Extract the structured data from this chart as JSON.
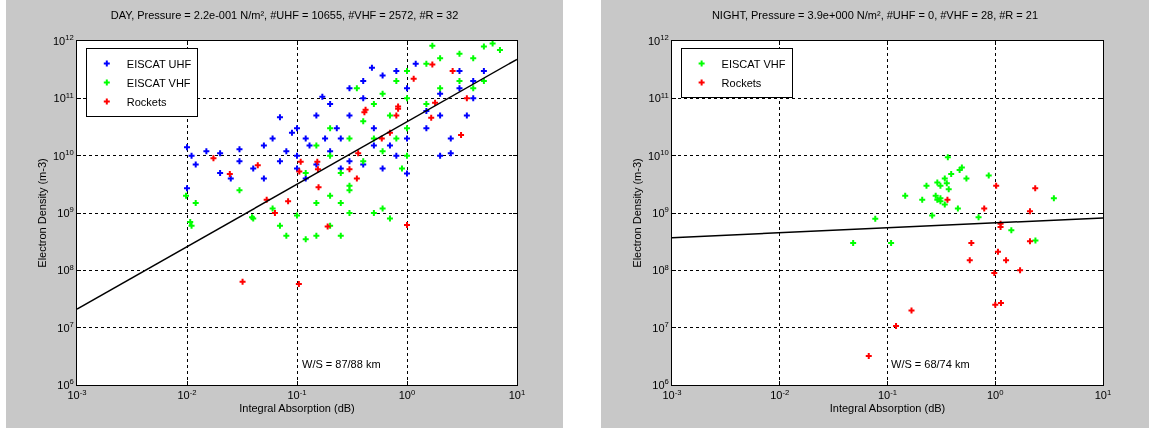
{
  "chart_data": [
    {
      "type": "scatter",
      "title": "DAY, Pressure = 2.2e-001 N/m², #UHF = 10655, #VHF = 2572, #R = 32",
      "xlabel": "Integral Absorption (dB)",
      "ylabel": "Electron Density (m-3)",
      "annotations": [
        "W/S = 87/88 km"
      ],
      "log": "xy",
      "grid": true,
      "legend": "top left",
      "marker": "cross",
      "xlim": [
        0.001,
        10
      ],
      "ylim": [
        1000000,
        1000000000000
      ],
      "xticks": [
        {
          "value": 0.001,
          "label": "10$^{-3}$"
        },
        {
          "value": 0.01,
          "label": "10$^{-2}$"
        },
        {
          "value": 0.1,
          "label": "10$^{-1}$"
        },
        {
          "value": 1,
          "label": "10$^{0}$"
        },
        {
          "value": 10,
          "label": "10$^{1}$"
        }
      ],
      "yticks": [
        {
          "value": 1000000,
          "label": "10$^{6}$"
        },
        {
          "value": 10000000,
          "label": "10$^{7}$"
        },
        {
          "value": 100000000,
          "label": "10$^{8}$"
        },
        {
          "value": 1000000000,
          "label": "10$^{9}$"
        },
        {
          "value": 10000000000,
          "label": "10$^{10}$"
        },
        {
          "value": 100000000000,
          "label": "10$^{11}$"
        },
        {
          "value": 1000000000000,
          "label": "10$^{12}$"
        }
      ],
      "series": [
        {
          "name": "EISCAT UHF",
          "color": "#0000ff",
          "x": [
            0.01,
            0.01,
            0.011,
            0.012,
            0.015,
            0.02,
            0.02,
            0.025,
            0.03,
            0.03,
            0.04,
            0.05,
            0.05,
            0.06,
            0.07,
            0.07,
            0.08,
            0.09,
            0.1,
            0.1,
            0.12,
            0.13,
            0.15,
            0.17,
            0.2,
            0.23,
            0.25,
            0.3,
            0.3,
            0.4,
            0.4,
            0.48,
            0.5,
            0.6,
            0.7,
            0.8,
            1,
            1,
            1.5,
            1.5,
            2,
            2,
            2.5,
            2,
            3,
            4,
            5,
            3,
            1,
            0.6,
            0.2,
            0.25,
            0.4,
            0.15,
            0.12,
            0.8,
            1.2,
            0.1,
            0.18,
            0.5,
            0.3,
            2.5,
            4,
            3.5
          ],
          "values": [
            14000000000,
            2700000000,
            10000000000,
            7000000000,
            12000000000,
            5000000000,
            11000000000,
            4000000000,
            8000000000,
            13000000000,
            6000000000,
            15000000000,
            4000000000,
            20000000000,
            8000000000,
            47000000000,
            12000000000,
            25000000000,
            6000000000,
            30000000000,
            4000000000,
            15000000000,
            50000000000,
            107000000000,
            80000000000,
            30000000000,
            20000000000,
            50000000000,
            150000000000,
            200000000000,
            100000000000,
            340000000000,
            30000000000,
            6000000000,
            15000000000,
            10000000000,
            4900000000,
            20000000000,
            30000000000,
            60000000000,
            10000000000,
            50000000000,
            11000000000,
            120000000000,
            150000000000,
            200000000000,
            300000000000,
            300000000000,
            150000000000,
            250000000000,
            12000000000,
            6000000000,
            7000000000,
            7000000000,
            20000000000,
            300000000000,
            400000000000,
            10000000000,
            20000000000,
            15000000000,
            8000000000,
            20000000000,
            100000000000,
            50000000000
          ]
        },
        {
          "name": "EISCAT VHF",
          "color": "#00ff00",
          "x": [
            0.0098,
            0.0107,
            0.011,
            0.012,
            0.03,
            0.039,
            0.04,
            0.06,
            0.07,
            0.08,
            0.1,
            0.12,
            0.15,
            0.15,
            0.2,
            0.25,
            0.3,
            0.3,
            0.5,
            0.6,
            0.7,
            0.25,
            0.2,
            0.3,
            0.4,
            0.5,
            0.2,
            0.15,
            0.35,
            0.6,
            0.8,
            1,
            1.5,
            2,
            3,
            5,
            6,
            4,
            1.7,
            1,
            0.7,
            0.5,
            1,
            1.5,
            2,
            3,
            4,
            0.4,
            0.6,
            0.8,
            0.3,
            0.2,
            0.25,
            1,
            0.9,
            0.12,
            5,
            7
          ],
          "values": [
            2000000000,
            700000000,
            600000000,
            1500000000,
            2500000000,
            840000000,
            800000000,
            1200000000,
            600000000,
            400000000,
            900000000,
            350000000,
            400000000,
            1500000000,
            600000000,
            400000000,
            1000000000,
            2500000000,
            1000000000,
            1200000000,
            800000000,
            5000000000,
            10000000000,
            20000000000,
            40000000000,
            80000000000,
            30000000000,
            15000000000,
            150000000000,
            120000000000,
            200000000000,
            300000000000,
            400000000000,
            500000000000,
            600000000000,
            800000000000,
            900000000000,
            500000000000,
            830000000000,
            100000000000,
            50000000000,
            20000000000,
            30000000000,
            80000000000,
            150000000000,
            200000000000,
            150000000000,
            8000000000,
            12000000000,
            20000000000,
            3000000000,
            2000000000,
            1500000000,
            10000000000,
            6000000000,
            5000000000,
            200000000000,
            700000000000
          ]
        },
        {
          "name": "Rockets",
          "color": "#ff0000",
          "x": [
            0.0174,
            0.0245,
            0.044,
            0.053,
            0.063,
            0.083,
            0.032,
            0.104,
            0.108,
            0.105,
            0.153,
            0.155,
            0.157,
            0.19,
            0.3,
            0.36,
            0.35,
            0.59,
            0.7,
            0.83,
            0.8,
            1,
            1.66,
            3.1,
            0.42,
            1.7,
            2.6,
            1.8,
            0.83,
            3.5,
            1.15,
            0.41
          ],
          "values": [
            9000000000,
            4800000000,
            6800000000,
            1700000000,
            1000000000,
            1600000000,
            63000000,
            58000000,
            7800000000,
            5300000000,
            7800000000,
            5800000000,
            2800000000,
            580000000,
            5800000000,
            11000000000,
            4000000000,
            20000000000,
            25000000000,
            72000000000,
            50000000000,
            620000000,
            46000000000,
            23000000000,
            63000000000,
            390000000000,
            300000000000,
            84000000000,
            66000000000,
            100000000000,
            220000000000,
            57000000000
          ]
        },
        {
          "type": "line",
          "marker": "none",
          "color": "#000000",
          "x": [
            0.001,
            10
          ],
          "values": [
            21000000,
            480000000000
          ]
        }
      ]
    },
    {
      "type": "scatter",
      "title": "NIGHT, Pressure = 3.9e+000 N/m², #UHF = 0, #VHF = 28, #R = 21",
      "xlabel": "Integral Absorption (dB)",
      "ylabel": "Electron Density (m-3)",
      "annotations": [
        "W/S = 68/74 km"
      ],
      "log": "xy",
      "grid": true,
      "legend": "top left",
      "marker": "cross",
      "xlim": [
        0.001,
        10
      ],
      "ylim": [
        1000000,
        1000000000000
      ],
      "xticks": [
        {
          "value": 0.001,
          "label": "10$^{-3}$"
        },
        {
          "value": 0.01,
          "label": "10$^{-2}$"
        },
        {
          "value": 0.1,
          "label": "10$^{-1}$"
        },
        {
          "value": 1,
          "label": "10$^{0}$"
        },
        {
          "value": 10,
          "label": "10$^{1}$"
        }
      ],
      "yticks": [
        {
          "value": 1000000,
          "label": "10$^{6}$"
        },
        {
          "value": 10000000,
          "label": "10$^{7}$"
        },
        {
          "value": 100000000,
          "label": "10$^{8}$"
        },
        {
          "value": 1000000000,
          "label": "10$^{9}$"
        },
        {
          "value": 10000000000,
          "label": "10$^{10}$"
        },
        {
          "value": 100000000000,
          "label": "10$^{11}$"
        },
        {
          "value": 1000000000000,
          "label": "10$^{12}$"
        }
      ],
      "series": [
        {
          "name": "EISCAT VHF",
          "color": "#00ff00",
          "x": [
            0.363,
            0.467,
            0.49,
            0.39,
            0.54,
            0.87,
            0.34,
            0.29,
            0.23,
            0.31,
            0.37,
            0.28,
            0.31,
            0.21,
            0.146,
            0.31,
            0.34,
            0.45,
            0.26,
            0.7,
            0.077,
            1.41,
            0.048,
            0.108,
            2.36,
            3.5,
            0.355,
            0.29
          ],
          "values": [
            9400000000,
            5600000000,
            6200000000,
            4800000000,
            4000000000,
            4500000000,
            4000000000,
            3400000000,
            3000000000,
            3000000000,
            2600000000,
            2000000000,
            1800000000,
            1700000000,
            2000000000,
            1600000000,
            1400000000,
            1200000000,
            900000000,
            840000000,
            790000000,
            500000000,
            300000000,
            300000000,
            330000000,
            1800000000,
            3300000000,
            1700000000
          ]
        },
        {
          "name": "Rockets",
          "color": "#ff0000",
          "x": [
            1.02,
            2.35,
            0.36,
            0.79,
            2.1,
            1.12,
            0.6,
            2.1,
            1.06,
            0.58,
            1.26,
            1.7,
            0.98,
            1,
            1.13,
            0.167,
            0.12,
            0.067,
            1.12
          ],
          "values": [
            3000000000,
            2700000000,
            1700000000,
            1200000000,
            1070000000,
            570000000,
            300000000,
            320000000,
            210000000,
            150000000,
            150000000,
            100000000,
            90000000,
            25000000,
            27000000,
            20000000,
            10700000,
            3200000,
            650000000
          ]
        },
        {
          "type": "line",
          "marker": "none",
          "color": "#000000",
          "x": [
            0.001,
            10
          ],
          "values": [
            370000000,
            820000000
          ]
        }
      ]
    }
  ]
}
